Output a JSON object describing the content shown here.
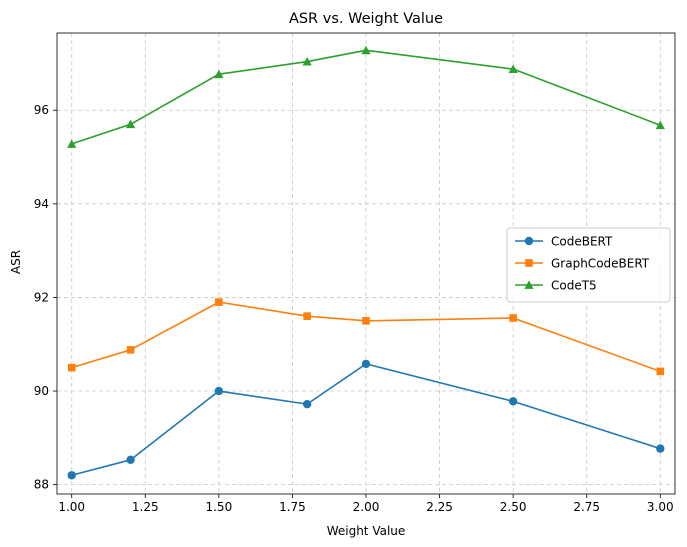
{
  "chart_data": {
    "type": "line",
    "title": "ASR vs. Weight Value",
    "xlabel": "Weight Value",
    "ylabel": "ASR",
    "x": [
      1.0,
      1.2,
      1.5,
      1.8,
      2.0,
      2.5,
      3.0
    ],
    "xlim": [
      0.95,
      3.05
    ],
    "ylim": [
      87.8,
      97.65
    ],
    "xticks": [
      1.0,
      1.25,
      1.5,
      1.75,
      2.0,
      2.25,
      2.5,
      2.75,
      3.0
    ],
    "xtick_labels": [
      "1.00",
      "1.25",
      "1.50",
      "1.75",
      "2.00",
      "2.25",
      "2.50",
      "2.75",
      "3.00"
    ],
    "yticks": [
      88,
      90,
      92,
      94,
      96
    ],
    "ytick_labels": [
      "88",
      "90",
      "92",
      "94",
      "96"
    ],
    "grid": true,
    "legend_position": "center-right",
    "series": [
      {
        "name": "CodeBERT",
        "color": "#1f77b4",
        "marker": "circle",
        "values": [
          88.2,
          88.53,
          90.0,
          89.72,
          90.58,
          89.78,
          88.77
        ]
      },
      {
        "name": "GraphCodeBERT",
        "color": "#ff7f0e",
        "marker": "square",
        "values": [
          90.5,
          90.88,
          91.9,
          91.6,
          91.5,
          91.56,
          90.42
        ]
      },
      {
        "name": "CodeT5",
        "color": "#2ca02c",
        "marker": "triangle",
        "values": [
          95.28,
          95.7,
          96.77,
          97.04,
          97.28,
          96.88,
          95.68
        ]
      }
    ]
  }
}
